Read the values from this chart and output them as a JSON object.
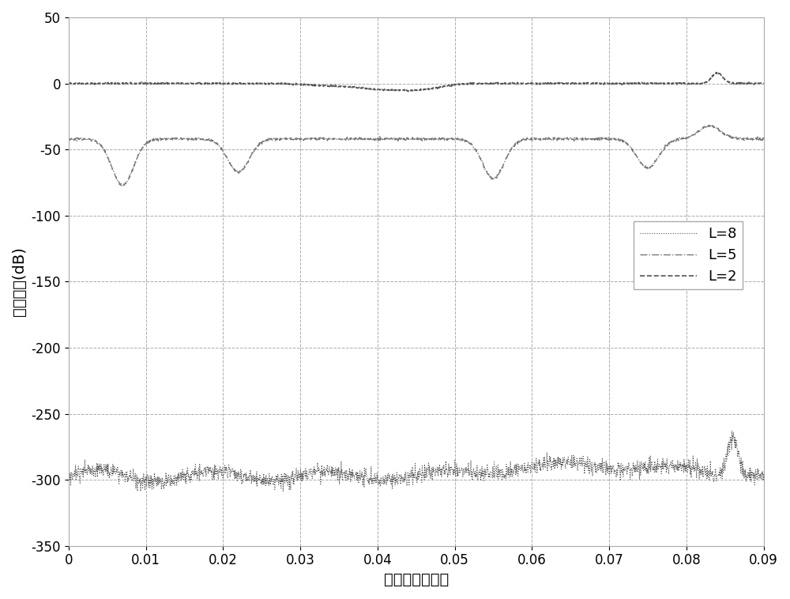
{
  "xlim": [
    0,
    0.09
  ],
  "ylim": [
    -350,
    50
  ],
  "xticks": [
    0,
    0.01,
    0.02,
    0.03,
    0.04,
    0.05,
    0.06,
    0.07,
    0.08,
    0.09
  ],
  "yticks": [
    50,
    0,
    -50,
    -100,
    -150,
    -200,
    -250,
    -300,
    -350
  ],
  "xlabel": "归一化空间频率",
  "ylabel": "拟合误差(dB)",
  "grid_color": "#888888",
  "line_L2_color": "#888888",
  "line_L5_color": "#888888",
  "line_L8_color": "#888888",
  "legend_labels": [
    "L=2",
    "L=5",
    "L=8"
  ],
  "background_color": "#ffffff",
  "figsize": [
    10.0,
    7.58
  ],
  "dpi": 100
}
